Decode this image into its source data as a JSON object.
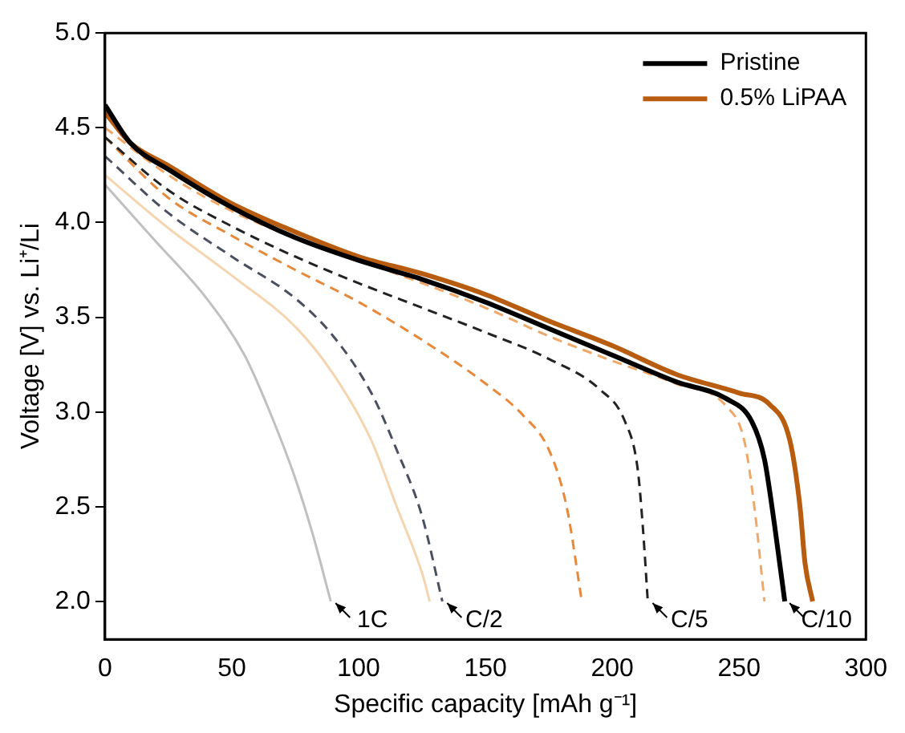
{
  "chart_data": {
    "type": "line",
    "xlabel": "Specific capacity [mAh g⁻¹]",
    "ylabel": "Voltage [V] vs. Li⁺/Li",
    "xlim": [
      0,
      300
    ],
    "xticks": [
      0,
      50,
      100,
      150,
      200,
      250,
      300
    ],
    "ylim": [
      1.8,
      5.0
    ],
    "yticks": [
      {
        "value": 2.0,
        "label": "2.0"
      },
      2.5,
      {
        "value": 3.0,
        "label": "3.0"
      },
      3.5,
      {
        "value": 4.0,
        "label": "4.0"
      },
      4.5,
      {
        "value": 5.0,
        "label": "5.0"
      }
    ],
    "grid": false,
    "legend": "top right",
    "marker": "none",
    "series": [
      {
        "name": "Pristine",
        "color": "#000000",
        "line_style": "solid",
        "x": [
          0,
          10,
          25,
          50,
          75,
          100,
          125,
          150,
          175,
          200,
          225,
          245,
          255,
          260,
          264,
          268
        ],
        "values": [
          4.62,
          4.42,
          4.28,
          4.08,
          3.92,
          3.8,
          3.7,
          3.58,
          3.44,
          3.3,
          3.16,
          3.07,
          2.95,
          2.75,
          2.4,
          2.0
        ]
      },
      {
        "name": "0.5% LiPAA",
        "color": "#b85c10",
        "line_style": "solid",
        "x": [
          0,
          10,
          25,
          50,
          75,
          100,
          125,
          150,
          175,
          200,
          225,
          250,
          262,
          270,
          274,
          276,
          279
        ],
        "values": [
          4.58,
          4.42,
          4.3,
          4.1,
          3.95,
          3.82,
          3.73,
          3.62,
          3.48,
          3.35,
          3.2,
          3.1,
          3.04,
          2.85,
          2.5,
          2.2,
          2.0
        ]
      },
      {
        "color": "#222222",
        "line_style": "dashed",
        "x": [
          0,
          25,
          50,
          75,
          100,
          125,
          150,
          175,
          195,
          205,
          210,
          212,
          214
        ],
        "values": [
          4.45,
          4.17,
          3.98,
          3.82,
          3.68,
          3.55,
          3.42,
          3.28,
          3.12,
          2.95,
          2.7,
          2.4,
          2.0
        ]
      },
      {
        "color": "#f0a868",
        "line_style": "dashed",
        "x": [
          0,
          25,
          50,
          75,
          100,
          125,
          150,
          175,
          200,
          225,
          245,
          252,
          256,
          260
        ],
        "values": [
          4.5,
          4.25,
          4.06,
          3.92,
          3.8,
          3.68,
          3.55,
          3.4,
          3.27,
          3.15,
          3.03,
          2.85,
          2.5,
          2.0
        ]
      },
      {
        "color": "#e8883a",
        "line_style": "dashed",
        "x": [
          0,
          25,
          50,
          75,
          100,
          125,
          150,
          165,
          175,
          182,
          188
        ],
        "values": [
          4.45,
          4.13,
          3.93,
          3.75,
          3.58,
          3.38,
          3.15,
          2.98,
          2.8,
          2.5,
          2.0
        ]
      },
      {
        "color": "#4a5060",
        "line_style": "dashed",
        "x": [
          0,
          25,
          50,
          75,
          90,
          105,
          115,
          125,
          133
        ],
        "values": [
          4.35,
          4.05,
          3.82,
          3.6,
          3.4,
          3.1,
          2.8,
          2.45,
          2.0
        ]
      },
      {
        "color": "#f5d5b0",
        "line_style": "solid",
        "x": [
          0,
          25,
          50,
          75,
          90,
          105,
          115,
          125,
          128
        ],
        "values": [
          4.25,
          3.97,
          3.72,
          3.45,
          3.2,
          2.85,
          2.5,
          2.15,
          2.0
        ]
      },
      {
        "color": "#c0c0c0",
        "line_style": "solid",
        "x": [
          0,
          20,
          40,
          55,
          65,
          75,
          82,
          89
        ],
        "values": [
          4.2,
          3.9,
          3.6,
          3.3,
          3.0,
          2.65,
          2.35,
          2.0
        ]
      }
    ],
    "annotations": [
      {
        "text": "1C",
        "x": 89,
        "y": 2.0
      },
      {
        "text": "C/2",
        "x": 133,
        "y": 2.0
      },
      {
        "text": "C/5",
        "x": 214,
        "y": 2.0
      },
      {
        "text": "C/10",
        "x": 268,
        "y": 2.0
      }
    ]
  }
}
